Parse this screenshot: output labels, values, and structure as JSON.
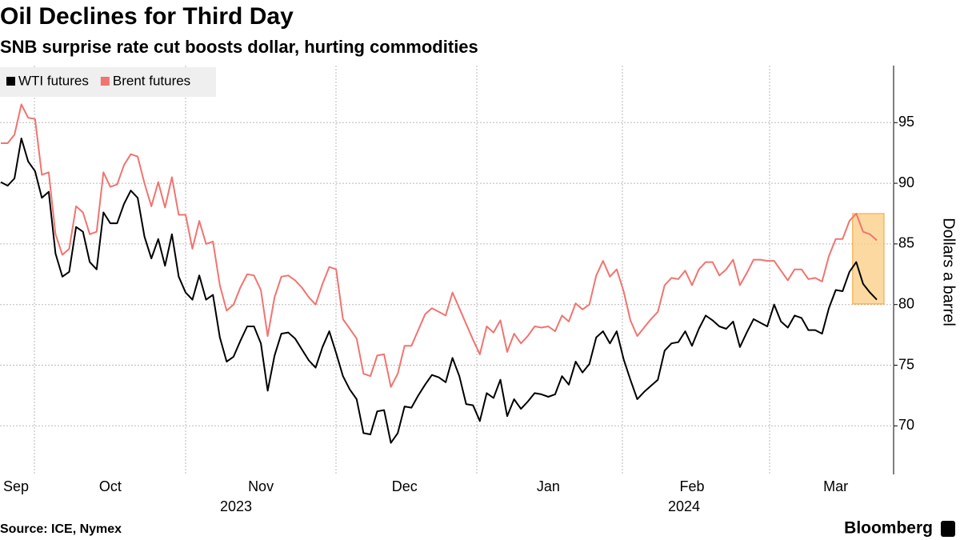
{
  "chart_data": {
    "type": "line",
    "title": "Oil Declines for Third Day",
    "subtitle": "SNB surprise rate cut boosts dollar, hurting commodities",
    "ylabel": "Dollars a barrel",
    "source": "Source: ICE, Nymex",
    "brand": "Bloomberg",
    "years": [
      "2023",
      "2024"
    ],
    "categories": [
      null,
      null,
      "Sep",
      null,
      null,
      null,
      null,
      null,
      null,
      null,
      null,
      null,
      null,
      null,
      null,
      null,
      "Oct",
      null,
      null,
      null,
      null,
      null,
      null,
      null,
      null,
      null,
      null,
      null,
      null,
      null,
      null,
      null,
      null,
      null,
      null,
      null,
      null,
      null,
      "Nov",
      null,
      null,
      null,
      null,
      null,
      null,
      null,
      null,
      null,
      null,
      null,
      null,
      null,
      null,
      null,
      null,
      null,
      null,
      null,
      null,
      "Dec",
      null,
      null,
      null,
      null,
      null,
      null,
      null,
      null,
      null,
      null,
      null,
      null,
      null,
      null,
      null,
      null,
      null,
      null,
      null,
      null,
      "Jan",
      null,
      null,
      null,
      null,
      null,
      null,
      null,
      null,
      null,
      null,
      null,
      null,
      null,
      null,
      null,
      null,
      null,
      null,
      null,
      null,
      "Feb",
      null,
      null,
      null,
      null,
      null,
      null,
      null,
      null,
      null,
      null,
      null,
      null,
      null,
      null,
      null,
      null,
      null,
      null,
      null,
      null,
      "Mar",
      null,
      null,
      null,
      null,
      null,
      null
    ],
    "series": [
      {
        "name": "WTI futures",
        "color": "#000000",
        "values": [
          90.1,
          89.8,
          90.4,
          93.7,
          91.8,
          91.0,
          88.8,
          89.3,
          84.2,
          82.3,
          82.7,
          86.4,
          86.0,
          83.5,
          82.9,
          87.6,
          86.7,
          86.7,
          88.3,
          89.4,
          88.8,
          85.6,
          83.8,
          85.4,
          83.2,
          85.8,
          82.3,
          81.0,
          80.4,
          82.4,
          80.4,
          80.8,
          77.3,
          75.3,
          75.7,
          77.0,
          78.2,
          78.2,
          76.8,
          72.9,
          75.8,
          77.6,
          77.7,
          77.2,
          76.3,
          75.4,
          74.8,
          76.5,
          77.8,
          76.0,
          74.1,
          73.0,
          72.2,
          69.4,
          69.3,
          71.2,
          71.3,
          68.6,
          69.4,
          71.6,
          71.5,
          72.5,
          73.4,
          74.2,
          74.0,
          73.6,
          75.6,
          74.1,
          71.8,
          71.7,
          70.4,
          72.7,
          72.3,
          73.8,
          70.8,
          72.2,
          71.4,
          72.0,
          72.7,
          72.6,
          72.4,
          72.6,
          74.1,
          73.4,
          75.3,
          74.4,
          75.1,
          77.3,
          77.8,
          76.8,
          77.8,
          75.5,
          73.8,
          72.2,
          72.8,
          73.3,
          73.8,
          76.2,
          76.8,
          76.9,
          77.8,
          76.6,
          78.0,
          79.1,
          78.7,
          78.2,
          78.0,
          78.6,
          76.5,
          77.7,
          78.8,
          78.5,
          78.2,
          80.0,
          78.6,
          78.1,
          79.1,
          78.9,
          77.9,
          77.9,
          77.6,
          79.7,
          81.2,
          81.1,
          82.7,
          83.5,
          81.7,
          81.0,
          80.4
        ]
      },
      {
        "name": "Brent futures",
        "color": "#f07470",
        "values": [
          93.3,
          93.3,
          94.0,
          96.5,
          95.4,
          95.3,
          90.7,
          90.9,
          85.8,
          84.1,
          84.6,
          88.1,
          87.6,
          85.8,
          86.0,
          90.9,
          89.7,
          89.9,
          91.5,
          92.4,
          92.2,
          90.0,
          88.1,
          90.1,
          88.0,
          90.5,
          87.4,
          87.4,
          84.6,
          86.9,
          85.0,
          85.2,
          81.6,
          79.5,
          80.0,
          81.4,
          82.5,
          82.4,
          81.2,
          77.4,
          80.6,
          82.3,
          82.4,
          82.0,
          81.4,
          80.6,
          80.0,
          81.7,
          83.1,
          82.9,
          78.8,
          78.0,
          77.2,
          74.3,
          74.1,
          75.8,
          75.9,
          73.2,
          74.3,
          76.6,
          76.6,
          77.9,
          79.2,
          79.7,
          79.4,
          79.1,
          81.0,
          79.7,
          78.4,
          77.1,
          75.9,
          78.2,
          77.7,
          78.7,
          76.1,
          77.6,
          76.8,
          77.4,
          78.2,
          78.1,
          78.2,
          77.8,
          79.1,
          78.6,
          80.1,
          79.6,
          80.0,
          82.4,
          83.6,
          82.3,
          82.9,
          81.1,
          78.7,
          77.4,
          78.1,
          78.8,
          79.4,
          81.6,
          82.2,
          82.1,
          82.8,
          81.6,
          82.9,
          83.5,
          83.5,
          82.4,
          82.9,
          83.7,
          81.6,
          82.6,
          83.7,
          83.7,
          83.6,
          83.6,
          82.8,
          82.0,
          82.9,
          82.9,
          82.1,
          82.2,
          81.9,
          84.0,
          85.4,
          85.4,
          86.9,
          87.5,
          86.0,
          85.8,
          85.3
        ]
      }
    ],
    "ylim": [
      66,
      99.7
    ],
    "yticks": [
      70,
      75,
      80,
      85,
      90,
      95
    ],
    "grid": true,
    "legend": "top-left"
  }
}
